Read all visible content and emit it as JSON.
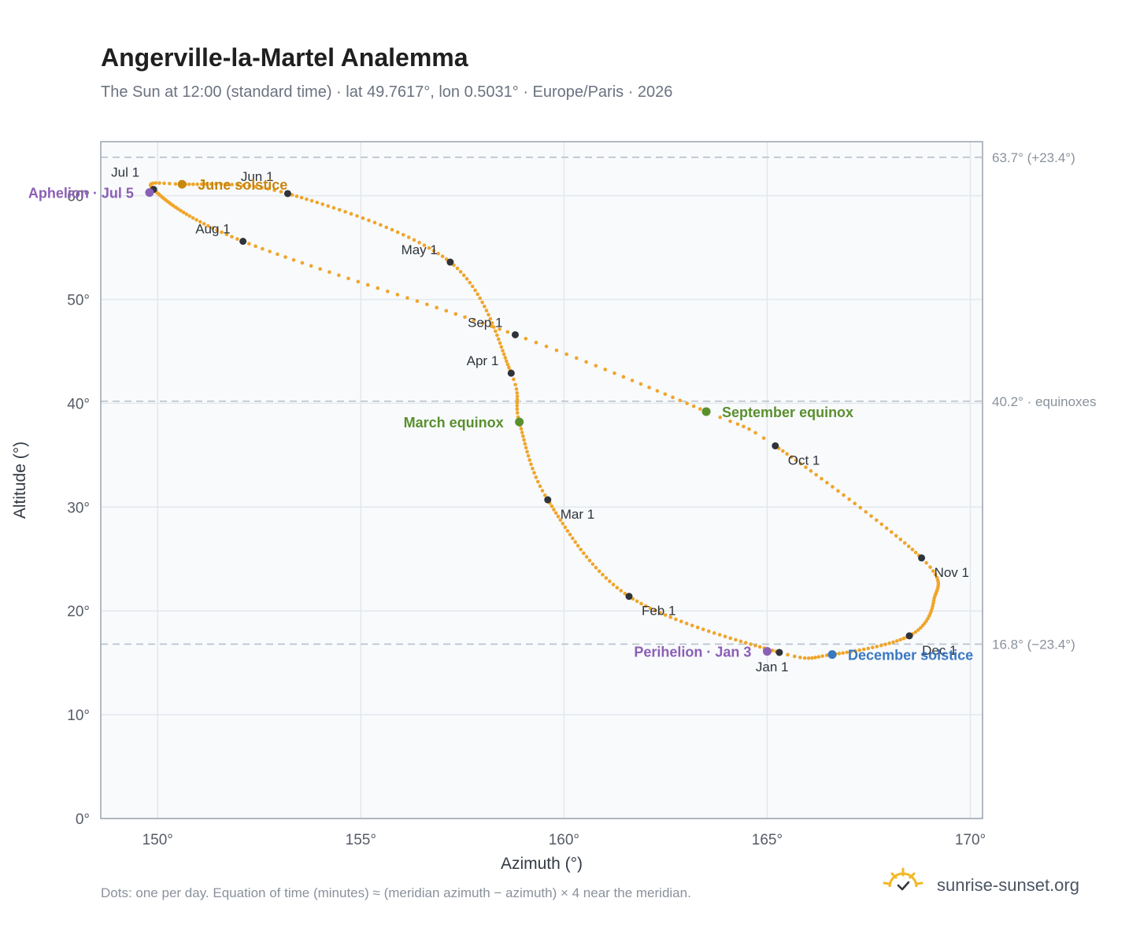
{
  "header": {
    "title": "Angerville-la-Martel Analemma",
    "subtitle": "The Sun at 12:00 (standard time) · lat 49.7617°, lon 0.5031° · Europe/Paris · 2026"
  },
  "footer": {
    "note": "Dots: one per day. Equation of time (minutes) ≈ (meridian azimuth − azimuth) × 4 near the meridian.",
    "brand": "sunrise-sunset.org",
    "brand_icon": "sun-check-icon"
  },
  "colors": {
    "path": "#f0a52a",
    "month_marker": "#2f343b",
    "solstice_june": "#c8860f",
    "solstice_december": "#3a78c2",
    "equinox": "#5a8f2e",
    "apsis": "#8b5fb5",
    "plot_background": "#f8fafc",
    "reference_line": "#b9c0ca"
  },
  "chart_data": {
    "type": "scatter",
    "title": "Angerville-la-Martel Analemma",
    "xlabel": "Azimuth (°)",
    "ylabel": "Altitude (°)",
    "xlim": [
      148.6,
      170.3
    ],
    "ylim": [
      0,
      65.2
    ],
    "x_ticks": [
      150,
      155,
      160,
      165,
      170
    ],
    "x_tick_labels": [
      "150°",
      "155°",
      "160°",
      "165°",
      "170°"
    ],
    "y_ticks": [
      0,
      10,
      20,
      30,
      40,
      50,
      60
    ],
    "y_tick_labels": [
      "0°",
      "10°",
      "20°",
      "30°",
      "40°",
      "50°",
      "60°"
    ],
    "grid": true,
    "reference_lines": [
      {
        "y": 63.7,
        "label": "63.7° (+23.4°)"
      },
      {
        "y": 40.2,
        "label": "40.2° · equinoxes"
      },
      {
        "y": 16.8,
        "label": "16.8° (−23.4°)"
      }
    ],
    "path_anchors": [
      {
        "doy": 1,
        "az": 165.3,
        "alt": 16.0
      },
      {
        "doy": 32,
        "az": 161.6,
        "alt": 21.4
      },
      {
        "doy": 60,
        "az": 159.6,
        "alt": 30.7
      },
      {
        "doy": 79,
        "az": 158.9,
        "alt": 38.2
      },
      {
        "doy": 91,
        "az": 158.7,
        "alt": 42.9
      },
      {
        "doy": 121,
        "az": 157.2,
        "alt": 53.6
      },
      {
        "doy": 152,
        "az": 153.2,
        "alt": 60.2
      },
      {
        "doy": 172,
        "az": 150.6,
        "alt": 61.1
      },
      {
        "doy": 182,
        "az": 149.9,
        "alt": 60.6
      },
      {
        "doy": 213,
        "az": 152.1,
        "alt": 55.6
      },
      {
        "doy": 244,
        "az": 158.8,
        "alt": 46.6
      },
      {
        "doy": 266,
        "az": 163.5,
        "alt": 39.2
      },
      {
        "doy": 274,
        "az": 165.2,
        "alt": 35.9
      },
      {
        "doy": 305,
        "az": 168.8,
        "alt": 25.1
      },
      {
        "doy": 320,
        "az": 169.1,
        "alt": 21.0
      },
      {
        "doy": 335,
        "az": 168.5,
        "alt": 17.6
      },
      {
        "doy": 355,
        "az": 166.6,
        "alt": 15.8
      },
      {
        "doy": 366,
        "az": 165.3,
        "alt": 16.0
      }
    ],
    "month_markers": [
      {
        "label": "Jan 1",
        "az": 165.3,
        "alt": 16.0,
        "pos": "below"
      },
      {
        "label": "Feb 1",
        "az": 161.6,
        "alt": 21.4,
        "pos": "below-right"
      },
      {
        "label": "Mar 1",
        "az": 159.6,
        "alt": 30.7,
        "pos": "below-right"
      },
      {
        "label": "Apr 1",
        "az": 158.7,
        "alt": 42.9,
        "pos": "left"
      },
      {
        "label": "May 1",
        "az": 157.2,
        "alt": 53.6,
        "pos": "left"
      },
      {
        "label": "Jun 1",
        "az": 153.2,
        "alt": 60.2,
        "pos": "above-left"
      },
      {
        "label": "Jul 1",
        "az": 149.9,
        "alt": 60.6,
        "pos": "above-left"
      },
      {
        "label": "Aug 1",
        "az": 152.1,
        "alt": 55.6,
        "pos": "left"
      },
      {
        "label": "Sep 1",
        "az": 158.8,
        "alt": 46.6,
        "pos": "left"
      },
      {
        "label": "Oct 1",
        "az": 165.2,
        "alt": 35.9,
        "pos": "below-right"
      },
      {
        "label": "Nov 1",
        "az": 168.8,
        "alt": 25.1,
        "pos": "below-right"
      },
      {
        "label": "Dec 1",
        "az": 168.5,
        "alt": 17.6,
        "pos": "below-right"
      }
    ],
    "events": [
      {
        "label": "June solstice",
        "az": 150.6,
        "alt": 61.1,
        "color": "#c8860f",
        "side": "right"
      },
      {
        "label": "December solstice",
        "az": 166.6,
        "alt": 15.8,
        "color": "#3a78c2",
        "side": "right"
      },
      {
        "label": "March equinox",
        "az": 158.9,
        "alt": 38.2,
        "color": "#5a8f2e",
        "side": "left"
      },
      {
        "label": "September equinox",
        "az": 163.5,
        "alt": 39.2,
        "color": "#5a8f2e",
        "side": "right"
      },
      {
        "label": "Aphelion · Jul 5",
        "az": 149.8,
        "alt": 60.3,
        "color": "#8b5fb5",
        "side": "left"
      },
      {
        "label": "Perihelion · Jan 3",
        "az": 165.0,
        "alt": 16.1,
        "color": "#8b5fb5",
        "side": "left"
      }
    ]
  }
}
